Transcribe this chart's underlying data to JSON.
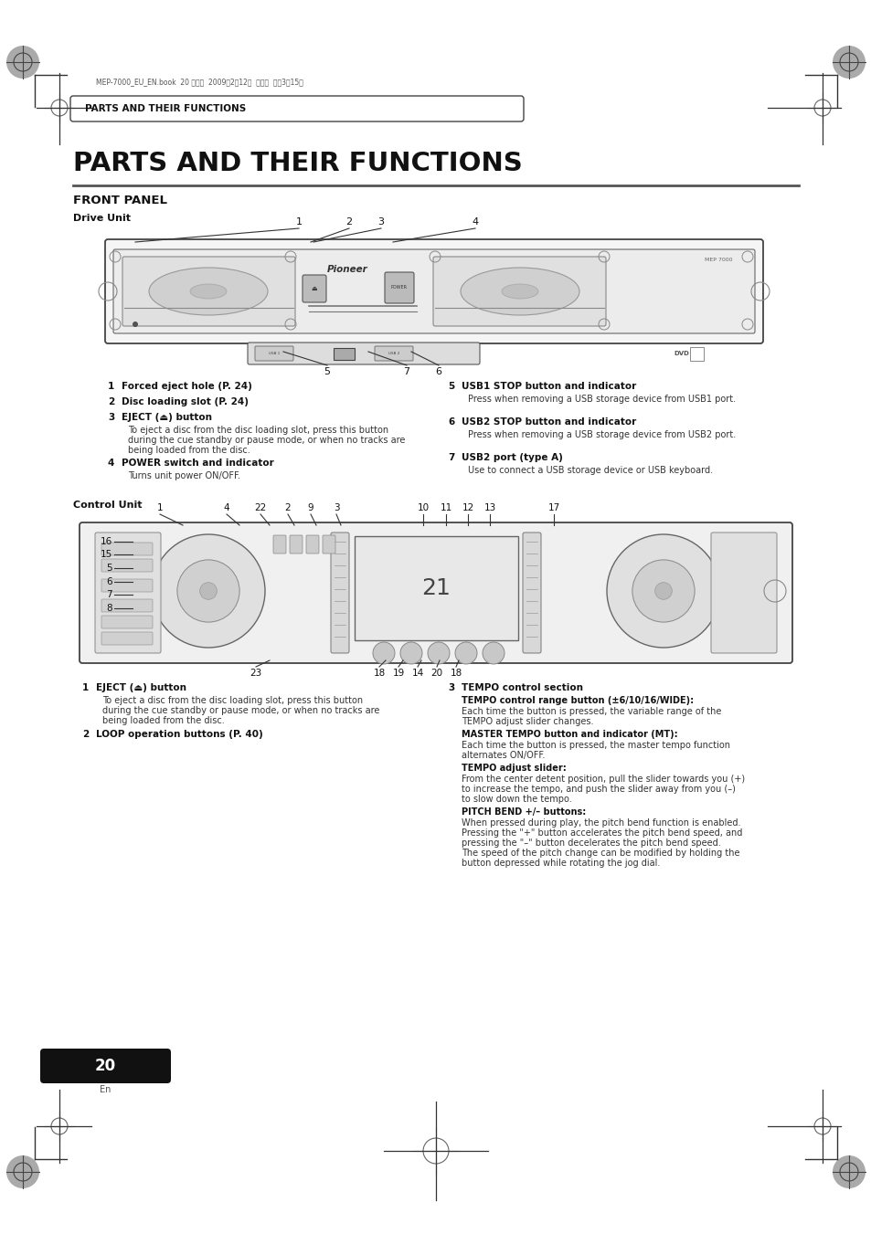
{
  "bg_color": "#ffffff",
  "page_width": 9.54,
  "page_height": 13.51,
  "header_tab_text": "PARTS AND THEIR FUNCTIONS",
  "main_title": "PARTS AND THEIR FUNCTIONS",
  "section1_title": "FRONT PANEL",
  "subsection1_title": "Drive Unit",
  "section2_title": "Control Unit",
  "page_number": "20",
  "page_lang": "En",
  "header_text": "MEP-7000_EU_EN.book  20 ページ  2009年2月12日  木曜日  午後3時15分",
  "drive_desc_left": [
    {
      "num": "1",
      "bold": "Forced eject hole (P. 24)",
      "text": ""
    },
    {
      "num": "2",
      "bold": "Disc loading slot (P. 24)",
      "text": ""
    },
    {
      "num": "3",
      "bold": "EJECT (⏏) button",
      "text": "To eject a disc from the disc loading slot, press this button\nduring the cue standby or pause mode, or when no tracks are\nbeing loaded from the disc."
    },
    {
      "num": "4",
      "bold": "POWER switch and indicator",
      "text": "Turns unit power ON/OFF."
    }
  ],
  "drive_desc_right": [
    {
      "num": "5",
      "bold": "USB1 STOP button and indicator",
      "text": "Press when removing a USB storage device from USB1 port."
    },
    {
      "num": "6",
      "bold": "USB2 STOP button and indicator",
      "text": "Press when removing a USB storage device from USB2 port."
    },
    {
      "num": "7",
      "bold": "USB2 port (type A)",
      "text": "Use to connect a USB storage device or USB keyboard."
    }
  ],
  "ctrl_desc_left": [
    {
      "num": "1",
      "bold": "EJECT (⏏) button",
      "text": "To eject a disc from the disc loading slot, press this button\nduring the cue standby or pause mode, or when no tracks are\nbeing loaded from the disc."
    },
    {
      "num": "2",
      "bold": "LOOP operation buttons (P. 40)",
      "text": ""
    }
  ],
  "ctrl_desc_right_header": {
    "num": "3",
    "bold": "TEMPO control section"
  },
  "ctrl_desc_right_subs": [
    {
      "bold": "TEMPO control range button (±6/10/16/WIDE):",
      "text": "Each time the button is pressed, the variable range of the\nTEMPO adjust slider changes."
    },
    {
      "bold": "MASTER TEMPO button and indicator (MT):",
      "text": "Each time the button is pressed, the master tempo function\nalternates ON/OFF."
    },
    {
      "bold": "TEMPO adjust slider:",
      "text": "From the center detent position, pull the slider towards you (+)\nto increase the tempo, and push the slider away from you (–)\nto slow down the tempo."
    },
    {
      "bold": "PITCH BEND +/– buttons:",
      "text": "When pressed during play, the pitch bend function is enabled.\nPressing the \"+\" button accelerates the pitch bend speed, and\npressing the \"–\" button decelerates the pitch bend speed.\nThe speed of the pitch change can be modified by holding the\nbutton depressed while rotating the jog dial."
    }
  ],
  "crosshair_color": "#666666",
  "line_color": "#333333",
  "text_color": "#111111",
  "gray_color": "#555555"
}
